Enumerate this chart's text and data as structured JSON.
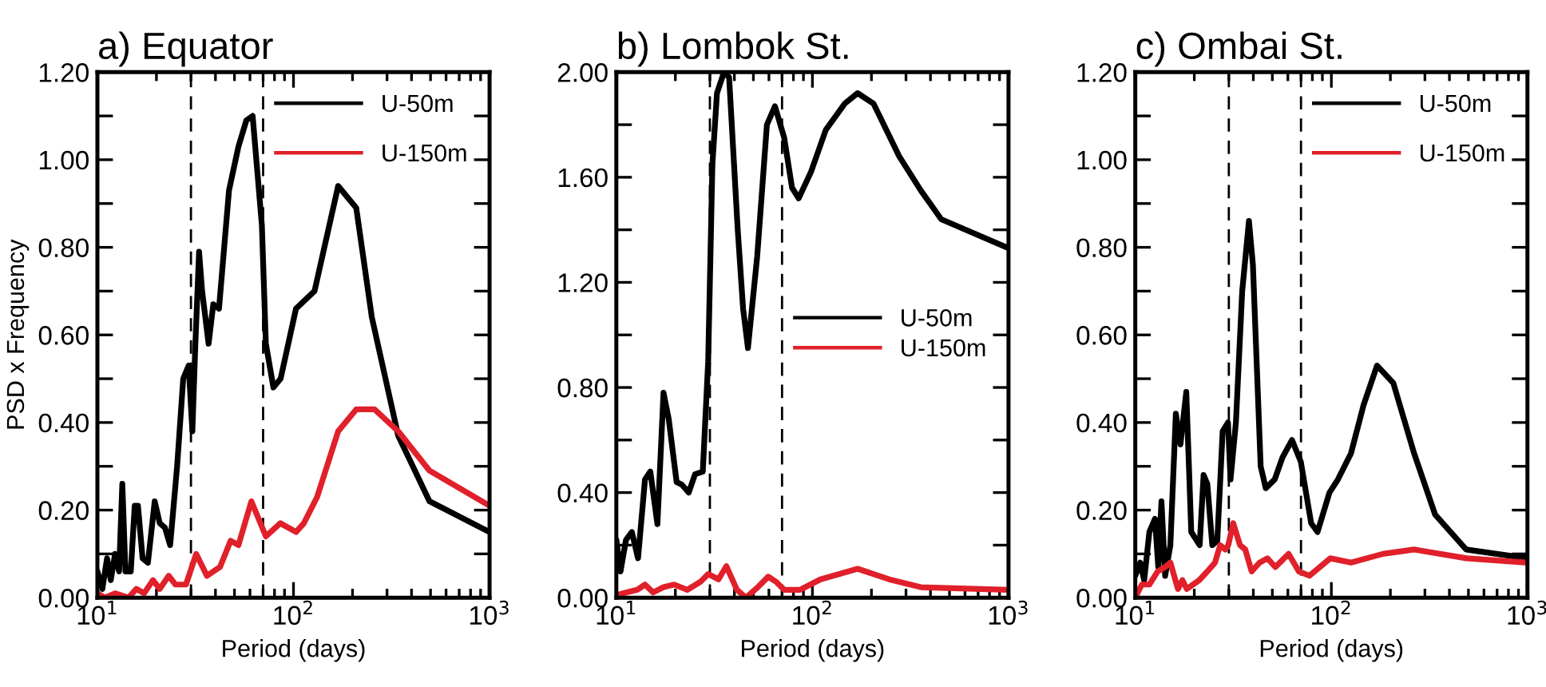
{
  "chart_data": [
    {
      "type": "line",
      "title": "a) Equator",
      "xlabel": "Period (days)",
      "ylabel": "PSD x Frequency",
      "log": "x",
      "legend": "top right",
      "line_style": "solid",
      "grid": false,
      "xlim": [
        10,
        1000
      ],
      "xticks": [
        {
          "value": 10,
          "label": "10$^{1}$"
        },
        {
          "value": 100,
          "label": "10$^{2}$"
        },
        {
          "value": 1000,
          "label": "10$^{3}$"
        }
      ],
      "ylim": [
        0,
        1.2
      ],
      "yticks": [
        {
          "value": 0,
          "label": "0.00"
        },
        {
          "value": 0.1,
          "label": null
        },
        {
          "value": 0.2,
          "label": "0.20"
        },
        {
          "value": 0.3,
          "label": null
        },
        {
          "value": 0.4,
          "label": "0.40"
        },
        {
          "value": 0.5,
          "label": null
        },
        {
          "value": 0.6,
          "label": "0.60"
        },
        {
          "value": 0.7,
          "label": null
        },
        {
          "value": 0.8,
          "label": "0.80"
        },
        {
          "value": 0.9,
          "label": null
        },
        {
          "value": 1.0,
          "label": "1.00"
        },
        {
          "value": 1.1,
          "label": null
        },
        {
          "value": 1.2,
          "label": "1.20"
        }
      ],
      "ref_lines": [
        {
          "axis": "x",
          "value": 30,
          "color": "#000000",
          "line_style": "dashed"
        },
        {
          "axis": "x",
          "value": 70,
          "color": "#000000",
          "line_style": "dashed"
        }
      ],
      "series": [
        {
          "name": "U-50m",
          "color": "#000000",
          "x": [
            10,
            10.6,
            11.2,
            11.7,
            12.3,
            12.9,
            13.4,
            13.9,
            14.8,
            15.5,
            16.1,
            17.0,
            18.1,
            19.6,
            20.8,
            22.1,
            23.5,
            25.5,
            27.4,
            29.2,
            30.5,
            31.6,
            33.0,
            34.2,
            36.9,
            39.0,
            41.7,
            46.9,
            52.4,
            57.5,
            61.9,
            69.0,
            72.3,
            79,
            86,
            103,
            128,
            169,
            209,
            251,
            342,
            494,
            1000
          ],
          "values": [
            0.06,
            0.02,
            0.09,
            0.04,
            0.1,
            0.06,
            0.26,
            0.06,
            0.06,
            0.21,
            0.21,
            0.09,
            0.08,
            0.22,
            0.17,
            0.16,
            0.12,
            0.3,
            0.5,
            0.53,
            0.38,
            0.58,
            0.79,
            0.7,
            0.58,
            0.67,
            0.66,
            0.93,
            1.03,
            1.09,
            1.1,
            0.85,
            0.58,
            0.48,
            0.5,
            0.66,
            0.7,
            0.94,
            0.89,
            0.64,
            0.37,
            0.22,
            0.15
          ]
        },
        {
          "name": "U-150m",
          "color": "#e0202a",
          "x": [
            10,
            10.9,
            12.3,
            14.4,
            15.8,
            17.3,
            19.2,
            20.8,
            23.1,
            25,
            28.3,
            31.9,
            36.2,
            42.2,
            47.8,
            52.4,
            61,
            72.3,
            85.7,
            103,
            113,
            132,
            169,
            209,
            259,
            342,
            494,
            1000
          ],
          "values": [
            0.01,
            0.0,
            0.01,
            0.0,
            0.02,
            0.01,
            0.04,
            0.02,
            0.05,
            0.03,
            0.03,
            0.1,
            0.05,
            0.07,
            0.13,
            0.12,
            0.22,
            0.14,
            0.17,
            0.15,
            0.17,
            0.23,
            0.38,
            0.43,
            0.43,
            0.38,
            0.29,
            0.21
          ]
        }
      ]
    },
    {
      "type": "line",
      "title": "b) Lombok St.",
      "xlabel": "Period (days)",
      "log": "x",
      "legend": "right",
      "line_style": "solid",
      "grid": false,
      "xlim": [
        10,
        1000
      ],
      "xticks": [
        {
          "value": 10,
          "label": "10$^{1}$"
        },
        {
          "value": 100,
          "label": "10$^{2}$"
        },
        {
          "value": 1000,
          "label": "10$^{3}$"
        }
      ],
      "ylim": [
        0,
        2.0
      ],
      "yticks": [
        {
          "value": 0,
          "label": "0.00"
        },
        {
          "value": 0.2,
          "label": null
        },
        {
          "value": 0.4,
          "label": "0.40"
        },
        {
          "value": 0.6,
          "label": null
        },
        {
          "value": 0.8,
          "label": "0.80"
        },
        {
          "value": 1.0,
          "label": null
        },
        {
          "value": 1.2,
          "label": "1.20"
        },
        {
          "value": 1.4,
          "label": null
        },
        {
          "value": 1.6,
          "label": "1.60"
        },
        {
          "value": 1.8,
          "label": null
        },
        {
          "value": 2.0,
          "label": "2.00"
        }
      ],
      "ref_lines": [
        {
          "axis": "x",
          "value": 30,
          "color": "#000000",
          "line_style": "dashed"
        },
        {
          "axis": "x",
          "value": 70,
          "color": "#000000",
          "line_style": "dashed"
        }
      ],
      "series": [
        {
          "name": "U-50m",
          "color": "#000000",
          "x": [
            10,
            10.5,
            11.2,
            12.0,
            12.9,
            14.0,
            14.9,
            16.2,
            17.4,
            18.5,
            20.3,
            21.6,
            23.4,
            25.2,
            27.6,
            29.4,
            30.9,
            32.6,
            35.4,
            37.6,
            41.6,
            44.3,
            46.9,
            52.3,
            58.6,
            64.4,
            71.8,
            78.7,
            85.1,
            98.3,
            117,
            146,
            170,
            205,
            277,
            357,
            454,
            1000
          ],
          "values": [
            0.22,
            0.1,
            0.22,
            0.25,
            0.15,
            0.45,
            0.48,
            0.28,
            0.78,
            0.68,
            0.44,
            0.43,
            0.4,
            0.47,
            0.48,
            0.9,
            1.65,
            1.92,
            2.0,
            1.98,
            1.4,
            1.1,
            0.95,
            1.3,
            1.8,
            1.87,
            1.75,
            1.56,
            1.52,
            1.62,
            1.78,
            1.88,
            1.92,
            1.88,
            1.68,
            1.55,
            1.44,
            1.33
          ]
        },
        {
          "name": "U-150m",
          "color": "#e0202a",
          "x": [
            10,
            11.3,
            12.8,
            14.0,
            15.4,
            17.4,
            19.7,
            23.0,
            26.8,
            29.4,
            33.2,
            36.4,
            41.2,
            45.8,
            52.7,
            59.5,
            65.4,
            71.8,
            86.6,
            110,
            170,
            246,
            357,
            1000
          ],
          "values": [
            0.01,
            0.02,
            0.03,
            0.05,
            0.02,
            0.04,
            0.05,
            0.03,
            0.06,
            0.09,
            0.07,
            0.12,
            0.03,
            0.0,
            0.04,
            0.08,
            0.06,
            0.03,
            0.03,
            0.07,
            0.11,
            0.07,
            0.04,
            0.03
          ]
        }
      ]
    },
    {
      "type": "line",
      "title": "c) Ombai St.",
      "xlabel": "Period (days)",
      "log": "x",
      "legend": "top right",
      "line_style": "solid",
      "grid": false,
      "xlim": [
        10,
        1000
      ],
      "xticks": [
        {
          "value": 10,
          "label": "10$^{1}$"
        },
        {
          "value": 100,
          "label": "10$^{2}$"
        },
        {
          "value": 1000,
          "label": "10$^{3}$"
        }
      ],
      "ylim": [
        0,
        1.2
      ],
      "yticks": [
        {
          "value": 0,
          "label": "0.00"
        },
        {
          "value": 0.1,
          "label": null
        },
        {
          "value": 0.2,
          "label": "0.20"
        },
        {
          "value": 0.3,
          "label": null
        },
        {
          "value": 0.4,
          "label": "0.40"
        },
        {
          "value": 0.5,
          "label": null
        },
        {
          "value": 0.6,
          "label": "0.60"
        },
        {
          "value": 0.7,
          "label": null
        },
        {
          "value": 0.8,
          "label": "0.80"
        },
        {
          "value": 0.9,
          "label": null
        },
        {
          "value": 1.0,
          "label": "1.00"
        },
        {
          "value": 1.1,
          "label": null
        },
        {
          "value": 1.2,
          "label": "1.20"
        }
      ],
      "ref_lines": [
        {
          "axis": "x",
          "value": 30,
          "color": "#000000",
          "line_style": "dashed"
        },
        {
          "axis": "x",
          "value": 70,
          "color": "#000000",
          "line_style": "dashed"
        }
      ],
      "series": [
        {
          "name": "U-50m",
          "color": "#000000",
          "x": [
            10,
            10.6,
            11.1,
            11.8,
            12.6,
            13.1,
            13.6,
            14.2,
            15.1,
            16.1,
            17.0,
            18.2,
            19.3,
            21.3,
            22.3,
            23.3,
            24.7,
            26.2,
            27.9,
            29.7,
            30.6,
            32.6,
            35.1,
            38.0,
            39.8,
            43.6,
            46.3,
            51.4,
            56.3,
            63.0,
            69.9,
            78.9,
            85,
            97.8,
            108,
            126,
            146,
            171,
            207,
            264,
            338,
            487,
            1000
          ],
          "values": [
            0.05,
            0.08,
            0.04,
            0.15,
            0.18,
            0.07,
            0.22,
            0.05,
            0.12,
            0.42,
            0.35,
            0.47,
            0.15,
            0.12,
            0.28,
            0.26,
            0.12,
            0.13,
            0.38,
            0.4,
            0.27,
            0.4,
            0.7,
            0.86,
            0.76,
            0.3,
            0.25,
            0.27,
            0.32,
            0.36,
            0.31,
            0.17,
            0.15,
            0.24,
            0.27,
            0.33,
            0.44,
            0.53,
            0.49,
            0.33,
            0.19,
            0.11,
            0.09
          ]
        },
        {
          "name": "U-150m",
          "color": "#e0202a",
          "x": [
            10,
            10.8,
            11.8,
            13.0,
            14.2,
            15.1,
            16.5,
            17.4,
            18.3,
            21.2,
            23.3,
            25.5,
            27.1,
            28.8,
            29.8,
            31.6,
            34.2,
            36.4,
            39.2,
            43.0,
            47.2,
            51.8,
            60.5,
            68.3,
            77.3,
            98.8,
            126,
            183,
            264,
            489,
            1000
          ],
          "values": [
            0.0,
            0.03,
            0.03,
            0.06,
            0.07,
            0.08,
            0.02,
            0.04,
            0.02,
            0.04,
            0.06,
            0.08,
            0.12,
            0.11,
            0.12,
            0.17,
            0.12,
            0.11,
            0.06,
            0.08,
            0.09,
            0.07,
            0.1,
            0.06,
            0.05,
            0.09,
            0.08,
            0.1,
            0.11,
            0.09,
            0.08
          ]
        }
      ]
    }
  ]
}
